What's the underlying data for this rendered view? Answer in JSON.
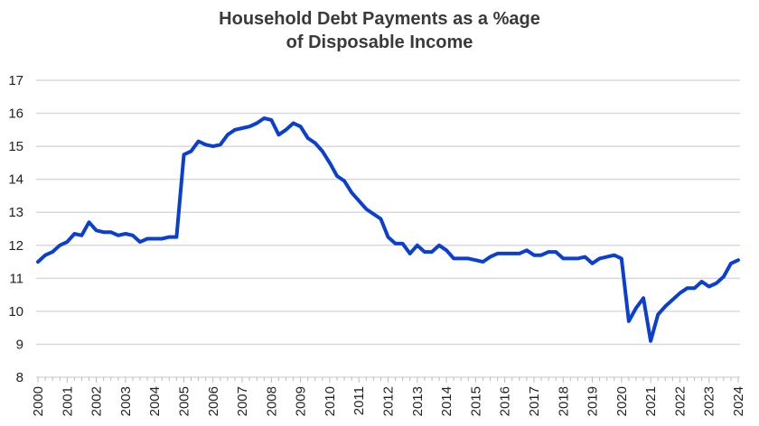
{
  "chart_data": {
    "type": "line",
    "title_lines": [
      "Household Debt Payments as a %age",
      "of Disposable Income"
    ],
    "xlabel": "",
    "ylabel": "",
    "ylim": [
      8,
      17
    ],
    "yticks": [
      "8",
      "9",
      "10",
      "11",
      "12",
      "13",
      "14",
      "15",
      "16",
      "17"
    ],
    "xlim": [
      2000,
      2024
    ],
    "xticks": [
      "2000",
      "2001",
      "2002",
      "2003",
      "2004",
      "2005",
      "2006",
      "2007",
      "2008",
      "2009",
      "2010",
      "2011",
      "2012",
      "2013",
      "2014",
      "2015",
      "2016",
      "2017",
      "2018",
      "2019",
      "2020",
      "2021",
      "2022",
      "2023",
      "2024"
    ],
    "grid": "horizontal",
    "frequency": "quarterly",
    "line_color": "#0a3fd1",
    "grid_color": "#d9d9d9",
    "series": [
      {
        "start": 2000,
        "values": [
          11.5,
          11.7,
          11.8,
          12.0,
          12.1,
          12.35,
          12.3,
          12.7,
          12.45,
          12.4,
          12.4,
          12.3,
          12.35,
          12.3,
          12.1,
          12.2,
          12.2,
          12.2,
          12.25,
          12.25,
          14.75,
          14.85,
          15.15,
          15.05,
          15.0,
          15.05,
          15.35,
          15.5,
          15.55,
          15.6,
          15.7,
          15.85,
          15.8,
          15.35,
          15.5,
          15.7,
          15.6,
          15.25,
          15.1,
          14.85,
          14.5,
          14.1,
          13.95,
          13.6,
          13.35,
          13.1,
          12.95,
          12.8,
          12.25,
          12.05,
          12.05,
          11.75,
          12.0,
          11.8,
          11.8,
          12.0,
          11.85,
          11.6,
          11.6,
          11.6,
          11.55,
          11.5,
          11.65,
          11.75,
          11.75,
          11.75,
          11.75,
          11.85,
          11.7,
          11.7,
          11.8,
          11.8,
          11.6,
          11.6,
          11.6,
          11.65,
          11.45,
          11.6,
          11.65,
          11.7,
          11.6,
          9.7,
          10.1,
          10.4,
          9.1,
          9.9,
          10.15,
          10.35,
          10.55,
          10.7,
          10.7,
          10.9,
          10.75,
          10.85,
          11.05,
          11.45,
          11.55
        ]
      }
    ]
  }
}
